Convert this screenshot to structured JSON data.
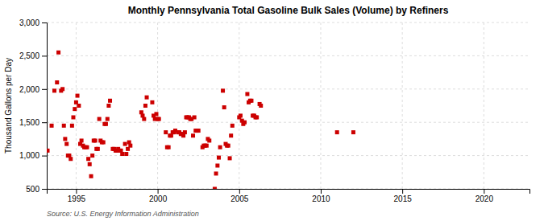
{
  "chart_data": {
    "type": "scatter",
    "title": "Monthly Pennsylvania Total Gasoline Bulk Sales (Volume) by Refiners",
    "ylabel": "Thousand Gallons per Day",
    "annotations": [
      "Source: U.S. Energy Information Administration"
    ],
    "color": "#cc0000",
    "marker": "square",
    "grid": true,
    "xlim": [
      1993.2,
      2022.8
    ],
    "xticks": [
      1995,
      2000,
      2005,
      2010,
      2015,
      2020
    ],
    "ylim": [
      500,
      3000
    ],
    "yticks": [
      500,
      {
        "value": 1000,
        "label": "1,000"
      },
      {
        "value": 1500,
        "label": "1,500"
      },
      {
        "value": 2000,
        "label": "2,000"
      },
      {
        "value": 2500,
        "label": "2,500"
      },
      {
        "value": 3000,
        "label": "3,000"
      }
    ],
    "x": [
      1993.25,
      1993.5,
      1993.67,
      1993.83,
      1993.92,
      1994.08,
      1994.17,
      1994.25,
      1994.33,
      1994.42,
      1994.5,
      1994.58,
      1994.67,
      1994.75,
      1994.83,
      1994.92,
      1995.0,
      1995.08,
      1995.17,
      1995.25,
      1995.33,
      1995.42,
      1995.5,
      1995.58,
      1995.67,
      1995.75,
      1995.83,
      1995.92,
      1996.0,
      1996.08,
      1996.17,
      1996.25,
      1996.33,
      1996.42,
      1996.5,
      1996.58,
      1996.67,
      1996.75,
      1996.83,
      1996.92,
      1997.0,
      1997.08,
      1997.25,
      1997.33,
      1997.42,
      1997.5,
      1997.58,
      1997.67,
      1997.75,
      1997.83,
      1998.0,
      1998.08,
      1998.17,
      1998.25,
      1998.33,
      1999.0,
      1999.08,
      1999.17,
      1999.25,
      1999.33,
      1999.67,
      1999.75,
      1999.83,
      1999.92,
      2000.0,
      2000.08,
      2000.5,
      2000.58,
      2000.67,
      2000.75,
      2000.83,
      2000.92,
      2001.0,
      2001.08,
      2001.25,
      2001.33,
      2001.42,
      2001.5,
      2001.58,
      2001.67,
      2001.75,
      2001.83,
      2001.92,
      2002.0,
      2002.08,
      2002.17,
      2002.25,
      2002.33,
      2002.42,
      2002.5,
      2002.75,
      2002.83,
      2002.92,
      2003.0,
      2003.08,
      2003.17,
      2003.5,
      2003.58,
      2003.67,
      2003.75,
      2003.83,
      2004.0,
      2004.08,
      2004.17,
      2004.25,
      2004.33,
      2004.42,
      2004.5,
      2004.58,
      2005.0,
      2005.08,
      2005.17,
      2005.25,
      2005.33,
      2005.5,
      2005.58,
      2005.67,
      2005.75,
      2005.83,
      2005.92,
      2006.0,
      2006.08,
      2006.25,
      2006.33,
      2011.0,
      2012.0
    ],
    "values": [
      1075,
      1450,
      1975,
      2100,
      2550,
      1975,
      2000,
      1450,
      1250,
      1175,
      1000,
      1000,
      950,
      1450,
      1575,
      1700,
      1800,
      1900,
      1750,
      1175,
      1225,
      1150,
      1125,
      1125,
      1125,
      950,
      870,
      690,
      1000,
      1225,
      1225,
      1100,
      1100,
      1550,
      1225,
      1200,
      1200,
      1475,
      1475,
      1550,
      1750,
      1825,
      1100,
      1100,
      1075,
      1075,
      1100,
      1075,
      1075,
      1025,
      1175,
      1025,
      1100,
      1200,
      1150,
      1650,
      1600,
      1550,
      1750,
      1875,
      1800,
      1600,
      1550,
      1625,
      1550,
      1550,
      1350,
      1125,
      1125,
      1300,
      1300,
      1350,
      1350,
      1375,
      1350,
      1350,
      1325,
      1325,
      1300,
      1350,
      1575,
      1575,
      1575,
      1550,
      1550,
      1300,
      1575,
      1375,
      1375,
      1375,
      1125,
      1150,
      1150,
      1150,
      1250,
      1225,
      500,
      730,
      850,
      970,
      1125,
      1975,
      1725,
      1175,
      1150,
      1150,
      960,
      1300,
      1450,
      1575,
      1600,
      1525,
      1475,
      1500,
      1925,
      1800,
      1825,
      1825,
      1600,
      1600,
      1575,
      1575,
      1775,
      1750,
      1350,
      1350
    ]
  }
}
